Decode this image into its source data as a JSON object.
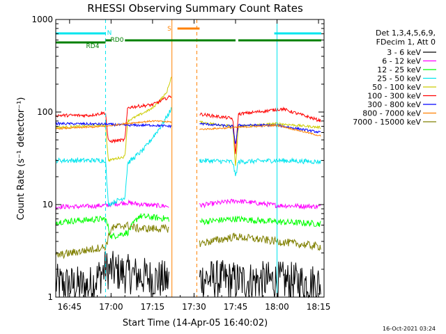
{
  "chart_data": {
    "type": "line",
    "title": "RHESSI Observing Summary Count Rates",
    "xlabel": "Start Time (14-Apr-05 16:40:02)",
    "ylabel": "Count Rate (s⁻¹ detector⁻¹)",
    "y_scale": "log",
    "ylim": [
      1,
      1000
    ],
    "xlim": [
      "16:40",
      "18:17"
    ],
    "x_ticks": [
      "16:45",
      "17:00",
      "17:15",
      "17:30",
      "17:45",
      "18:00",
      "18:15"
    ],
    "y_ticks": [
      "1",
      "10",
      "100",
      "1000"
    ],
    "grid": false,
    "legend_position": "right",
    "legend_header": [
      "Det 1,3,4,5,6,9,",
      "FDecim 1, Att 0"
    ],
    "footer_date": "16-Oct-2021 03:24",
    "flags": [
      {
        "label": "N",
        "color": "#00e5ee",
        "segments": [
          [
            "16:40",
            "16:58"
          ],
          [
            "17:59",
            "18:16"
          ]
        ]
      },
      {
        "label": "S",
        "color": "#ff8000",
        "segments": [
          [
            "17:24",
            "17:32"
          ]
        ]
      },
      {
        "label": "RD0",
        "color": "#008000",
        "segments": [
          [
            "16:58",
            "17:00"
          ],
          [
            "17:05",
            "17:45"
          ],
          [
            "17:46",
            "18:16"
          ]
        ]
      },
      {
        "label": "RD4",
        "color": "#008000",
        "segments": [
          [
            "16:40",
            "16:58"
          ]
        ]
      }
    ],
    "markers": [
      {
        "time": "16:40",
        "color": "#00e5ee",
        "style": "solid"
      },
      {
        "time": "16:58",
        "color": "#00e5ee",
        "style": "dashed"
      },
      {
        "time": "17:22",
        "color": "#ff8000",
        "style": "solid"
      },
      {
        "time": "17:31",
        "color": "#ff8000",
        "style": "dashed"
      },
      {
        "time": "18:00",
        "color": "#00e5ee",
        "style": "solid"
      },
      {
        "time": "18:17",
        "color": "#00e5ee",
        "style": "dashed"
      }
    ],
    "series": [
      {
        "name": "3 - 6 keV",
        "color": "#000000",
        "noise": 0.5,
        "x": [
          "16:40",
          "16:52",
          "16:58",
          "17:05",
          "17:15",
          "17:21"
        ],
        "y": [
          1.4,
          1.3,
          2.0,
          1.8,
          1.6,
          1.5
        ],
        "x2": [
          "17:32",
          "17:45",
          "18:00",
          "18:16"
        ],
        "y2": [
          1.6,
          1.5,
          1.5,
          1.4
        ]
      },
      {
        "name": "6 - 12 keV",
        "color": "#ff00ff",
        "noise": 0.06,
        "x": [
          "16:40",
          "16:50",
          "16:58",
          "17:05",
          "17:15",
          "17:21"
        ],
        "y": [
          9.5,
          9.5,
          9.8,
          10.5,
          9.8,
          9.6
        ],
        "x2": [
          "17:32",
          "17:45",
          "18:00",
          "18:16"
        ],
        "y2": [
          9.8,
          11,
          9.8,
          9.5
        ]
      },
      {
        "name": "12 - 25 keV",
        "color": "#00ff00",
        "noise": 0.08,
        "x": [
          "16:40",
          "16:58",
          "17:00",
          "17:06",
          "17:10",
          "17:21"
        ],
        "y": [
          6.5,
          7,
          4.5,
          5,
          7.5,
          7
        ],
        "x2": [
          "17:32",
          "17:45",
          "18:00",
          "18:16"
        ],
        "y2": [
          6.5,
          7,
          6.5,
          6.2
        ]
      },
      {
        "name": "25 - 50 keV",
        "color": "#00e5ee",
        "noise": 0.06,
        "x": [
          "16:40",
          "16:58",
          "16:59",
          "17:05",
          "17:06",
          "17:12",
          "17:18",
          "17:22"
        ],
        "y": [
          30,
          30,
          10,
          12,
          28,
          40,
          70,
          110
        ],
        "x2": [
          "17:32",
          "17:44",
          "17:45",
          "17:46",
          "18:00",
          "18:16"
        ],
        "y2": [
          30,
          29,
          20,
          29,
          30,
          29
        ]
      },
      {
        "name": "50 - 100 keV",
        "color": "#cccc00",
        "noise": 0.03,
        "x": [
          "16:40",
          "16:58",
          "16:59",
          "17:05",
          "17:06",
          "17:15",
          "17:20",
          "17:22"
        ],
        "y": [
          68,
          72,
          30,
          33,
          80,
          110,
          160,
          250
        ],
        "x2": [
          "17:32",
          "17:44",
          "17:45",
          "17:46",
          "18:00",
          "18:16"
        ],
        "y2": [
          78,
          70,
          25,
          70,
          75,
          68
        ]
      },
      {
        "name": "100 - 300 keV",
        "color": "#ff0000",
        "noise": 0.04,
        "x": [
          "16:40",
          "16:52",
          "16:58",
          "16:59",
          "17:05",
          "17:06",
          "17:15",
          "17:22"
        ],
        "y": [
          92,
          92,
          98,
          48,
          50,
          112,
          120,
          150
        ],
        "x2": [
          "17:32",
          "17:44",
          "17:45",
          "17:46",
          "18:02",
          "18:16"
        ],
        "y2": [
          95,
          85,
          35,
          95,
          108,
          80
        ]
      },
      {
        "name": "300 - 800 keV",
        "color": "#0000ff",
        "noise": 0.03,
        "x": [
          "16:40",
          "16:58",
          "17:05",
          "17:15",
          "17:22"
        ],
        "y": [
          75,
          74,
          72,
          72,
          70
        ],
        "x2": [
          "17:32",
          "17:44",
          "17:45",
          "17:46",
          "18:00",
          "18:16"
        ],
        "y2": [
          75,
          70,
          45,
          72,
          72,
          60
        ]
      },
      {
        "name": "800 - 7000 keV",
        "color": "#ff8000",
        "noise": 0.02,
        "x": [
          "16:40",
          "16:58",
          "17:05",
          "17:15",
          "17:22"
        ],
        "y": [
          66,
          70,
          75,
          80,
          78
        ],
        "x2": [
          "17:32",
          "17:45",
          "18:00",
          "18:16"
        ],
        "y2": [
          65,
          68,
          72,
          55
        ]
      },
      {
        "name": "7000 - 15000 keV",
        "color": "#808000",
        "noise": 0.1,
        "x": [
          "16:40",
          "16:58",
          "17:00",
          "17:05",
          "17:10",
          "17:21"
        ],
        "y": [
          2.8,
          3.5,
          5.5,
          6,
          5.5,
          5.5
        ],
        "x2": [
          "17:32",
          "17:45",
          "18:00",
          "18:16"
        ],
        "y2": [
          3.8,
          4.5,
          4,
          3.5
        ]
      }
    ]
  }
}
